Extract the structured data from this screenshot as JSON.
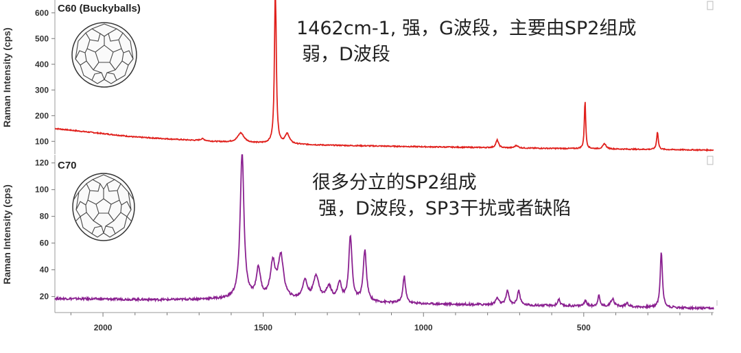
{
  "chart_data": [
    {
      "type": "line",
      "title": "C60 (Buckyballs)",
      "ylabel": "Raman Intensity (cps)",
      "xlabel": "",
      "xlim": [
        2150,
        95
      ],
      "ylim": [
        50,
        650
      ],
      "yticks": [
        100,
        200,
        300,
        400,
        500,
        600
      ],
      "color": "#e0201c",
      "baseline": [
        [
          2150,
          150
        ],
        [
          1900,
          117
        ],
        [
          1650,
          99
        ],
        [
          1500,
          92
        ],
        [
          1300,
          85
        ],
        [
          1000,
          79
        ],
        [
          700,
          74
        ],
        [
          400,
          70
        ],
        [
          95,
          66
        ]
      ],
      "peaks": [
        {
          "x": 1570,
          "h": 37,
          "w": 12
        },
        {
          "x": 1462,
          "h": 650,
          "w": 3.2
        },
        {
          "x": 1425,
          "h": 38,
          "w": 8
        },
        {
          "x": 1690,
          "h": 8,
          "w": 8
        },
        {
          "x": 770,
          "h": 30,
          "w": 5
        },
        {
          "x": 710,
          "h": 10,
          "w": 6
        },
        {
          "x": 496,
          "h": 190,
          "w": 2.5
        },
        {
          "x": 435,
          "h": 20,
          "w": 6
        },
        {
          "x": 270,
          "h": 70,
          "w": 3
        }
      ],
      "annotations": [
        "1462cm-1, 强，G波段，主要由SP2组成",
        "弱，D波段"
      ]
    },
    {
      "type": "line",
      "title": "C70",
      "ylabel": "Raman Intensity (cps)",
      "xlabel": "",
      "xlim": [
        2150,
        95
      ],
      "ylim": [
        8,
        126
      ],
      "yticks": [
        20,
        40,
        60,
        80,
        100,
        120
      ],
      "xticks": [
        2000,
        1500,
        1000,
        500
      ],
      "color": "#8a2090",
      "baseline": [
        [
          2150,
          18.5
        ],
        [
          1800,
          17.5
        ],
        [
          1650,
          18
        ],
        [
          1300,
          16.5
        ],
        [
          1000,
          14.5
        ],
        [
          700,
          13.5
        ],
        [
          400,
          12.5
        ],
        [
          95,
          11
        ]
      ],
      "peaks": [
        {
          "x": 1566,
          "h": 110,
          "w": 7
        },
        {
          "x": 1515,
          "h": 22,
          "w": 8
        },
        {
          "x": 1470,
          "h": 26,
          "w": 9
        },
        {
          "x": 1445,
          "h": 32,
          "w": 10
        },
        {
          "x": 1370,
          "h": 14,
          "w": 9
        },
        {
          "x": 1335,
          "h": 18,
          "w": 10
        },
        {
          "x": 1295,
          "h": 10,
          "w": 10
        },
        {
          "x": 1262,
          "h": 13,
          "w": 7
        },
        {
          "x": 1228,
          "h": 48,
          "w": 6
        },
        {
          "x": 1183,
          "h": 38,
          "w": 6
        },
        {
          "x": 1060,
          "h": 20,
          "w": 5
        },
        {
          "x": 770,
          "h": 5,
          "w": 6
        },
        {
          "x": 738,
          "h": 11,
          "w": 5
        },
        {
          "x": 703,
          "h": 11,
          "w": 5
        },
        {
          "x": 578,
          "h": 5,
          "w": 4
        },
        {
          "x": 495,
          "h": 4,
          "w": 5
        },
        {
          "x": 453,
          "h": 8,
          "w": 4
        },
        {
          "x": 410,
          "h": 6,
          "w": 6
        },
        {
          "x": 365,
          "h": 3,
          "w": 5
        },
        {
          "x": 258,
          "h": 42,
          "w": 4
        }
      ],
      "annotations": [
        "很多分立的SP2组成",
        "强，D波段，SP3干扰或者缺陷"
      ]
    }
  ]
}
